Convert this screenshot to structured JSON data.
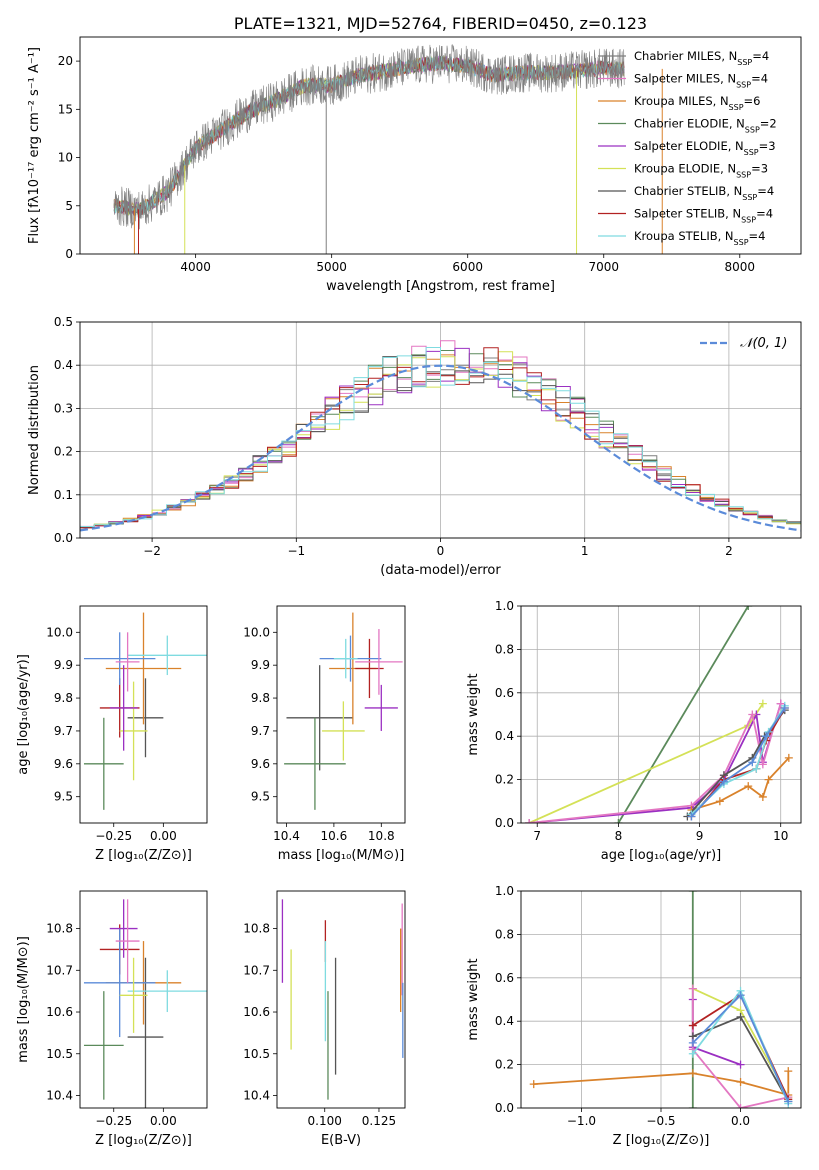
{
  "chart_data": [
    {
      "type": "line",
      "title": "PLATE=1321, MJD=52764, FIBERID=0450, z=0.123",
      "xlabel": "wavelength [Angstrom, rest frame]",
      "ylabel": "Flux [fλ10⁻¹⁷ erg cm⁻² s⁻¹ A⁻¹]",
      "xlim": [
        3150,
        8450
      ],
      "ylim": [
        0,
        22.5
      ],
      "xticks": [
        "4000",
        "5000",
        "6000",
        "7000",
        "8000"
      ],
      "yticks": [
        "0",
        "5",
        "10",
        "15",
        "20"
      ],
      "legend_position": "top-right",
      "legend": [
        {
          "label": "Chabrier MILES, NSSP=4",
          "color": "#7f7f7f"
        },
        {
          "label": "Salpeter MILES, NSSP=4",
          "color": "#e377c2"
        },
        {
          "label": "Kroupa MILES, NSSP=6",
          "color": "#d9822b"
        },
        {
          "label": "Chabrier ELODIE, NSSP=2",
          "color": "#5b8a5b"
        },
        {
          "label": "Salpeter ELODIE, NSSP=3",
          "color": "#9b30c2"
        },
        {
          "label": "Kroupa ELODIE, NSSP=3",
          "color": "#d4e157"
        },
        {
          "label": "Chabrier STELIB, NSSP=4",
          "color": "#555555"
        },
        {
          "label": "Salpeter STELIB, NSSP=4",
          "color": "#b22222"
        },
        {
          "label": "Kroupa STELIB, NSSP=4",
          "color": "#7fdbe0"
        }
      ],
      "spectrum_envelope": {
        "x": [
          3400,
          3600,
          3800,
          4000,
          4200,
          4400,
          4600,
          4800,
          5000,
          5200,
          5400,
          5600,
          5800,
          6000,
          6200,
          6400,
          6600,
          6800,
          7000,
          7100
        ],
        "y": [
          5.0,
          4.6,
          6.5,
          11.0,
          13.0,
          14.8,
          16.0,
          17.5,
          17.5,
          18.5,
          19.0,
          19.5,
          19.8,
          19.5,
          18.5,
          18.8,
          18.8,
          19.0,
          19.3,
          19.2
        ]
      },
      "drop_lines_x": [
        3550,
        3580,
        3920,
        4960,
        6800,
        7430
      ]
    },
    {
      "type": "line",
      "xlabel": "(data-model)/error",
      "ylabel": "Normed distribution",
      "xlim": [
        -2.5,
        2.5
      ],
      "ylim": [
        0,
        0.5
      ],
      "xticks": [
        "−2",
        "−1",
        "0",
        "1",
        "2"
      ],
      "yticks": [
        "0.0",
        "0.1",
        "0.2",
        "0.3",
        "0.4",
        "0.5"
      ],
      "grid": true,
      "legend_position": "top-right",
      "legend": [
        {
          "label": "𝒩(0, 1)",
          "color": "#5b8bd9"
        }
      ],
      "histogram_bin_width": 0.1,
      "histogram_colors": [
        "#7f7f7f",
        "#e377c2",
        "#d9822b",
        "#5b8a5b",
        "#9b30c2",
        "#d4e157",
        "#555555",
        "#b22222",
        "#7fdbe0"
      ]
    },
    {
      "type": "scatter",
      "xlabel": "Z [log₁₀(Z/Z⊙)]",
      "ylabel": "age  [log₁₀(age/yr)]",
      "xlim": [
        -0.42,
        0.22
      ],
      "ylim": [
        9.42,
        10.08
      ],
      "xticks": [
        "−0.25",
        "0.00"
      ],
      "yticks": [
        "9.5",
        "9.6",
        "9.7",
        "9.8",
        "9.9",
        "10.0"
      ],
      "points": [
        {
          "x": -0.09,
          "y": 9.74,
          "xerr": 0.09,
          "yerr": 0.12,
          "color": "#555555"
        },
        {
          "x": -0.1,
          "y": 9.89,
          "xerr": 0.19,
          "yerr": 0.17,
          "color": "#d9822b"
        },
        {
          "x": -0.22,
          "y": 9.77,
          "xerr": 0.1,
          "yerr": 0.09,
          "color": "#b22222"
        },
        {
          "x": -0.22,
          "y": 9.92,
          "xerr": 0.18,
          "yerr": 0.08,
          "color": "#5b8bd9"
        },
        {
          "x": 0.02,
          "y": 9.93,
          "xerr": 0.2,
          "yerr": 0.06,
          "color": "#7fdbe0"
        },
        {
          "x": -0.3,
          "y": 9.6,
          "xerr": 0.1,
          "yerr": 0.14,
          "color": "#5b8a5b"
        },
        {
          "x": -0.15,
          "y": 9.7,
          "xerr": 0.07,
          "yerr": 0.15,
          "color": "#d4e157"
        },
        {
          "x": -0.2,
          "y": 9.77,
          "xerr": 0.07,
          "yerr": 0.13,
          "color": "#9b30c2"
        },
        {
          "x": -0.18,
          "y": 9.91,
          "xerr": 0.06,
          "yerr": 0.09,
          "color": "#e377c2"
        }
      ]
    },
    {
      "type": "scatter",
      "xlabel": "mass [log₁₀(M/M⊙)]",
      "xlim": [
        10.36,
        10.9
      ],
      "ylim": [
        9.42,
        10.08
      ],
      "xticks": [
        "10.4",
        "10.6",
        "10.8"
      ],
      "yticks": [
        "9.5",
        "9.6",
        "9.7",
        "9.8",
        "9.9",
        "10.0"
      ],
      "points": [
        {
          "x": 10.54,
          "y": 9.74,
          "xerr": 0.14,
          "yerr": 0.16,
          "color": "#555555"
        },
        {
          "x": 10.68,
          "y": 9.89,
          "xerr": 0.1,
          "yerr": 0.17,
          "color": "#d9822b"
        },
        {
          "x": 10.75,
          "y": 9.89,
          "xerr": 0.06,
          "yerr": 0.09,
          "color": "#b22222"
        },
        {
          "x": 10.67,
          "y": 9.92,
          "xerr": 0.13,
          "yerr": 0.07,
          "color": "#5b8bd9"
        },
        {
          "x": 10.65,
          "y": 9.92,
          "xerr": 0.05,
          "yerr": 0.06,
          "color": "#7fdbe0"
        },
        {
          "x": 10.52,
          "y": 9.6,
          "xerr": 0.13,
          "yerr": 0.14,
          "color": "#5b8a5b"
        },
        {
          "x": 10.64,
          "y": 9.7,
          "xerr": 0.09,
          "yerr": 0.09,
          "color": "#d4e157"
        },
        {
          "x": 10.8,
          "y": 9.77,
          "xerr": 0.07,
          "yerr": 0.07,
          "color": "#9b30c2"
        },
        {
          "x": 10.79,
          "y": 9.91,
          "xerr": 0.1,
          "yerr": 0.1,
          "color": "#e377c2"
        }
      ]
    },
    {
      "type": "line",
      "xlabel": "age  [log₁₀(age/yr)]",
      "ylabel": "mass weight",
      "xlim": [
        6.8,
        10.25
      ],
      "ylim": [
        0,
        1
      ],
      "xticks": [
        "7",
        "8",
        "9",
        "10"
      ],
      "yticks": [
        "0.0",
        "0.2",
        "0.4",
        "0.6",
        "0.8",
        "1.0"
      ],
      "grid": true,
      "series": [
        {
          "color": "#5b8a5b",
          "x": [
            8.0,
            9.6
          ],
          "y": [
            0.0,
            1.0
          ]
        },
        {
          "color": "#d4e157",
          "x": [
            6.9,
            9.6,
            9.78
          ],
          "y": [
            0.0,
            0.45,
            0.55
          ]
        },
        {
          "color": "#9b30c2",
          "x": [
            6.9,
            8.9,
            9.3,
            9.7,
            9.78,
            10.0
          ],
          "y": [
            0.0,
            0.07,
            0.2,
            0.5,
            0.28,
            0.55
          ]
        },
        {
          "color": "#e377c2",
          "x": [
            6.9,
            8.9,
            9.3,
            9.65,
            9.78,
            10.0
          ],
          "y": [
            0.0,
            0.08,
            0.22,
            0.5,
            0.27,
            0.55
          ]
        },
        {
          "color": "#d9822b",
          "x": [
            8.9,
            9.25,
            9.6,
            9.78,
            9.85,
            10.1
          ],
          "y": [
            0.06,
            0.1,
            0.17,
            0.12,
            0.2,
            0.3
          ]
        },
        {
          "color": "#555555",
          "x": [
            8.85,
            9.3,
            9.65,
            9.8,
            10.05
          ],
          "y": [
            0.03,
            0.22,
            0.3,
            0.4,
            0.52
          ]
        },
        {
          "color": "#b22222",
          "x": [
            8.9,
            9.3,
            9.7,
            9.82,
            10.05
          ],
          "y": [
            0.03,
            0.2,
            0.25,
            0.38,
            0.53
          ]
        },
        {
          "color": "#7fdbe0",
          "x": [
            8.9,
            9.3,
            9.7,
            9.85,
            10.05
          ],
          "y": [
            0.04,
            0.18,
            0.25,
            0.42,
            0.54
          ]
        },
        {
          "color": "#5b8bd9",
          "x": [
            8.9,
            9.3,
            9.65,
            9.82,
            10.05
          ],
          "y": [
            0.03,
            0.19,
            0.28,
            0.4,
            0.53
          ]
        }
      ]
    },
    {
      "type": "scatter",
      "xlabel": "Z [log₁₀(Z/Z⊙)]",
      "ylabel": "mass [log₁₀(M/M⊙)]",
      "xlim": [
        -0.42,
        0.22
      ],
      "ylim": [
        10.37,
        10.89
      ],
      "xticks": [
        "−0.25",
        "0.00"
      ],
      "yticks": [
        "10.4",
        "10.5",
        "10.6",
        "10.7",
        "10.8"
      ],
      "points": [
        {
          "x": -0.09,
          "y": 10.54,
          "xerr": 0.09,
          "yerr": 0.19,
          "color": "#555555"
        },
        {
          "x": -0.1,
          "y": 10.67,
          "xerr": 0.19,
          "yerr": 0.1,
          "color": "#d9822b"
        },
        {
          "x": -0.22,
          "y": 10.75,
          "xerr": 0.1,
          "yerr": 0.06,
          "color": "#b22222"
        },
        {
          "x": -0.22,
          "y": 10.67,
          "xerr": 0.18,
          "yerr": 0.13,
          "color": "#5b8bd9"
        },
        {
          "x": 0.02,
          "y": 10.65,
          "xerr": 0.2,
          "yerr": 0.05,
          "color": "#7fdbe0"
        },
        {
          "x": -0.3,
          "y": 10.52,
          "xerr": 0.1,
          "yerr": 0.13,
          "color": "#5b8a5b"
        },
        {
          "x": -0.15,
          "y": 10.64,
          "xerr": 0.07,
          "yerr": 0.09,
          "color": "#d4e157"
        },
        {
          "x": -0.2,
          "y": 10.8,
          "xerr": 0.07,
          "yerr": 0.07,
          "color": "#9b30c2"
        },
        {
          "x": -0.18,
          "y": 10.77,
          "xerr": 0.06,
          "yerr": 0.1,
          "color": "#e377c2"
        }
      ]
    },
    {
      "type": "scatter",
      "xlabel": "E(B-V)",
      "xlim": [
        0.078,
        0.137
      ],
      "ylim": [
        10.37,
        10.89
      ],
      "xticks": [
        "0.100",
        "0.125"
      ],
      "yticks": [
        "10.4",
        "10.5",
        "10.6",
        "10.7",
        "10.8"
      ],
      "points": [
        {
          "x": 0.0805,
          "y": 10.77,
          "yerr": 0.1,
          "color": "#9b30c2"
        },
        {
          "x": 0.0845,
          "y": 10.63,
          "yerr": 0.12,
          "color": "#d4e157"
        },
        {
          "x": 0.1003,
          "y": 10.77,
          "yerr": 0.05,
          "color": "#b22222"
        },
        {
          "x": 0.1003,
          "y": 10.65,
          "yerr": 0.12,
          "color": "#7fdbe0"
        },
        {
          "x": 0.1015,
          "y": 10.52,
          "yerr": 0.13,
          "color": "#5b8a5b"
        },
        {
          "x": 0.105,
          "y": 10.59,
          "yerr": 0.14,
          "color": "#555555"
        },
        {
          "x": 0.135,
          "y": 10.7,
          "yerr": 0.1,
          "color": "#d9822b"
        },
        {
          "x": 0.1357,
          "y": 10.75,
          "yerr": 0.11,
          "color": "#e377c2"
        },
        {
          "x": 0.136,
          "y": 10.58,
          "yerr": 0.09,
          "color": "#5b8bd9"
        }
      ]
    },
    {
      "type": "line",
      "xlabel": "Z [log₁₀(Z/Z⊙)]",
      "ylabel": "mass weight",
      "xlim": [
        -1.38,
        0.38
      ],
      "ylim": [
        0,
        1
      ],
      "xticks": [
        "−1.0",
        "−0.5",
        "0.0"
      ],
      "yticks": [
        "0.0",
        "0.2",
        "0.4",
        "0.6",
        "0.8",
        "1.0"
      ],
      "grid": true,
      "series": [
        {
          "color": "#5b8a5b",
          "x": [
            -0.3,
            -0.3
          ],
          "y": [
            0.0,
            1.0
          ]
        },
        {
          "color": "#d9822b",
          "x": [
            -1.3,
            -0.3,
            0.0,
            0.3,
            0.3
          ],
          "y": [
            0.11,
            0.16,
            0.12,
            0.06,
            0.17
          ]
        },
        {
          "color": "#d4e157",
          "x": [
            -0.3,
            0.0,
            0.3
          ],
          "y": [
            0.55,
            0.45,
            0.05
          ]
        },
        {
          "color": "#9b30c2",
          "x": [
            -0.3,
            -0.3,
            0.0
          ],
          "y": [
            0.5,
            0.28,
            0.2
          ]
        },
        {
          "color": "#e377c2",
          "x": [
            -0.3,
            -0.3,
            0.0,
            0.3
          ],
          "y": [
            0.55,
            0.27,
            0.0,
            0.05
          ]
        },
        {
          "color": "#555555",
          "x": [
            -0.3,
            0.0,
            0.3
          ],
          "y": [
            0.33,
            0.42,
            0.03
          ]
        },
        {
          "color": "#b22222",
          "x": [
            -0.3,
            0.0,
            0.3
          ],
          "y": [
            0.38,
            0.52,
            0.04
          ]
        },
        {
          "color": "#7fdbe0",
          "x": [
            -0.3,
            0.0,
            0.3
          ],
          "y": [
            0.25,
            0.54,
            0.02
          ]
        },
        {
          "color": "#5b8bd9",
          "x": [
            -0.3,
            0.0,
            0.3
          ],
          "y": [
            0.3,
            0.52,
            0.03
          ]
        }
      ]
    }
  ]
}
